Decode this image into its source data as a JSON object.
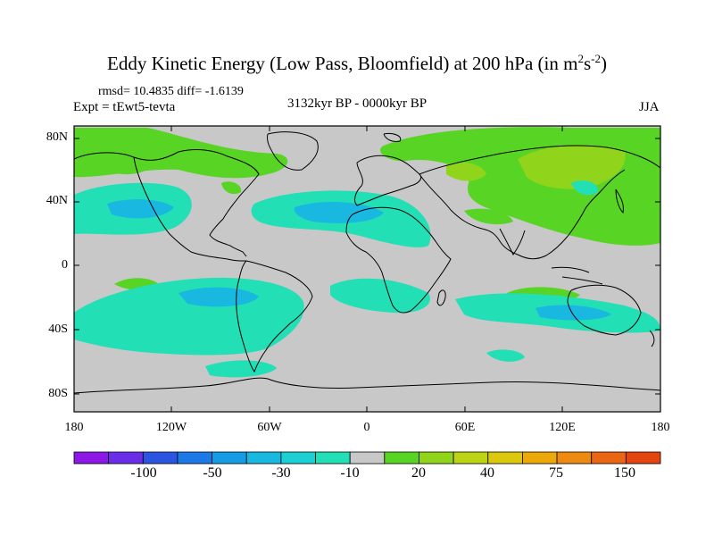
{
  "title_main": "Eddy Kinetic Energy (Low Pass, Bloomfield) at 200 hPa (in m",
  "title_sup1": "2",
  "title_mid": "s",
  "title_sup2": "-2",
  "title_end": ")",
  "stats": "rmsd= 10.4835 diff= -1.6139",
  "expt": "Expt = tEwt5-tevta",
  "period": "3132kyr BP - 0000kyr BP",
  "season": "JJA",
  "lat_labels": [
    "80N",
    "40N",
    "0",
    "40S",
    "80S"
  ],
  "lon_labels": [
    "180",
    "120W",
    "60W",
    "0",
    "60E",
    "120E",
    "180"
  ],
  "colorbar": {
    "colors": [
      "#8c17e6",
      "#6a2ee8",
      "#2b55e0",
      "#1e79e8",
      "#169be6",
      "#19b8e0",
      "#1ccfd4",
      "#22dfb6",
      "#c8c8c8",
      "#58d424",
      "#90d41c",
      "#bcd414",
      "#dcc80c",
      "#ecaa0a",
      "#ee8a10",
      "#ea6612",
      "#e4440e"
    ],
    "labels": [
      "-100",
      "-50",
      "-30",
      "-10",
      "20",
      "40",
      "75",
      "150"
    ]
  },
  "map": {
    "background_color": "#c8c8c8",
    "negative_color": "#22dfb6",
    "negative_strong_color": "#19b8e0",
    "positive_color": "#58d424",
    "positive_strong_color": "#90d41c"
  }
}
